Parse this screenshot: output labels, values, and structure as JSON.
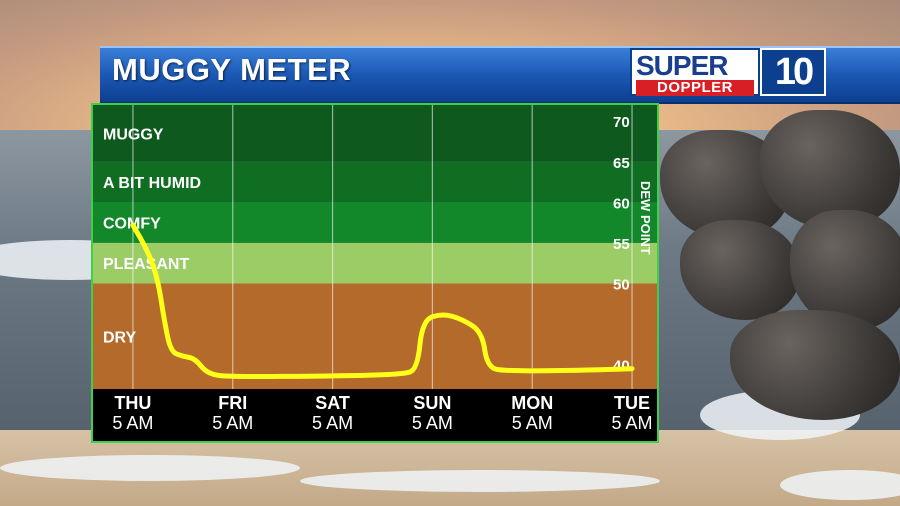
{
  "header": {
    "title": "MUGGY METER"
  },
  "logo": {
    "top": "SUPER",
    "bottom": "DOPPLER",
    "mark": "10"
  },
  "colors": {
    "banner": "#1b58b5",
    "muggy": "#0e5a1e",
    "humid": "#0f6e22",
    "comfy": "#12882b",
    "pleasant": "#9ccc65",
    "dry": "#b36a2a",
    "line": "#ffff1a",
    "axis_bg": "#000000"
  },
  "chart_data": {
    "type": "line",
    "title": "MUGGY METER",
    "ylabel": "DEW POINT",
    "ylim": [
      37,
      72
    ],
    "y_ticks": [
      40,
      50,
      55,
      60,
      65,
      70
    ],
    "bands": [
      {
        "label": "MUGGY",
        "min": 65,
        "max": 72
      },
      {
        "label": "A BIT HUMID",
        "min": 60,
        "max": 65
      },
      {
        "label": "COMFY",
        "min": 55,
        "max": 60
      },
      {
        "label": "PLEASANT",
        "min": 50,
        "max": 55
      },
      {
        "label": "DRY",
        "min": 37,
        "max": 50
      }
    ],
    "categories": [
      {
        "day": "THU",
        "time": "5 AM"
      },
      {
        "day": "FRI",
        "time": "5 AM"
      },
      {
        "day": "SAT",
        "time": "5 AM"
      },
      {
        "day": "SUN",
        "time": "5 AM"
      },
      {
        "day": "MON",
        "time": "5 AM"
      },
      {
        "day": "TUE",
        "time": "5 AM"
      }
    ],
    "x_range": [
      -0.4,
      5.25
    ],
    "series": [
      {
        "points": [
          [
            0.0,
            57.2
          ],
          [
            0.15,
            54.0
          ],
          [
            0.25,
            50.5
          ],
          [
            0.32,
            45.0
          ],
          [
            0.38,
            41.6
          ],
          [
            0.5,
            41.0
          ],
          [
            0.62,
            40.8
          ],
          [
            0.75,
            38.8
          ],
          [
            1.0,
            38.5
          ],
          [
            2.0,
            38.6
          ],
          [
            2.7,
            38.8
          ],
          [
            2.85,
            39.4
          ],
          [
            2.9,
            45.5
          ],
          [
            3.1,
            46.3
          ],
          [
            3.3,
            45.6
          ],
          [
            3.5,
            44.0
          ],
          [
            3.55,
            39.6
          ],
          [
            3.75,
            39.2
          ],
          [
            4.5,
            39.3
          ],
          [
            5.0,
            39.5
          ]
        ]
      }
    ]
  }
}
